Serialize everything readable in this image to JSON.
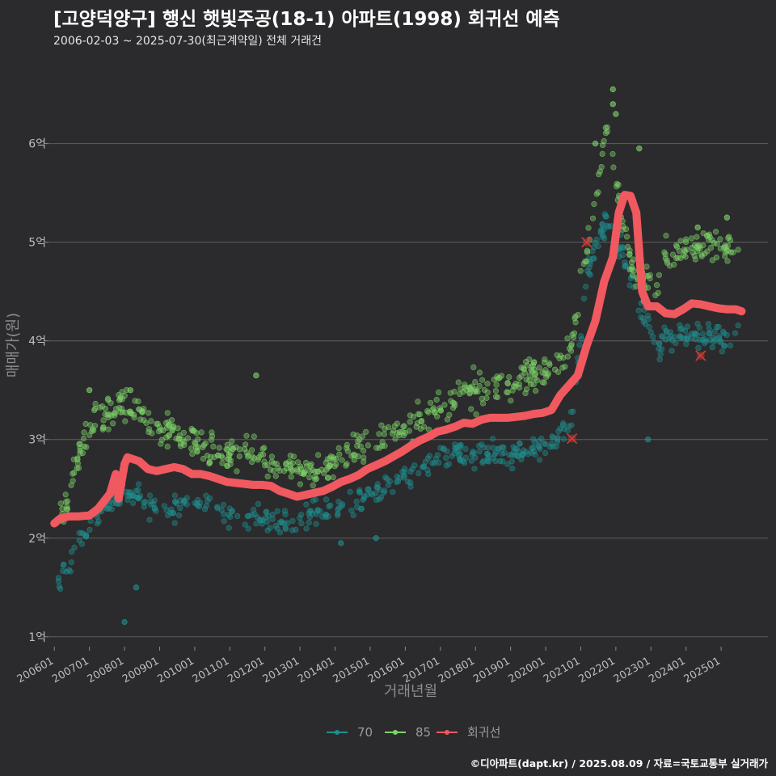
{
  "title": "[고양덕양구] 행신 햇빛주공(18-1) 아파트(1998) 회귀선 예측",
  "subtitle": "2006-02-03 ~ 2025-07-30(최근계약일) 전체 거래건",
  "credit": "©디아파트(dapt.kr) / 2025.08.09 / 자료=국토교통부 실거래가",
  "colors": {
    "background": "#2b2b2d",
    "grid": "#5e5e5e",
    "s70": "#1f8f8f",
    "s85": "#7fd36a",
    "regression": "#f0595f"
  },
  "chart_data": {
    "type": "scatter",
    "xlabel": "거래년월",
    "ylabel": "매매가(원)",
    "ylim": [
      0.9,
      6.8
    ],
    "xlim": [
      "2005-11",
      "2026-05"
    ],
    "grid": true,
    "legend_position": "bottom",
    "y_ticks": [
      {
        "value": 1,
        "label": "1억"
      },
      {
        "value": 2,
        "label": "2억"
      },
      {
        "value": 3,
        "label": "3억"
      },
      {
        "value": 4,
        "label": "4억"
      },
      {
        "value": 5,
        "label": "5억"
      },
      {
        "value": 6,
        "label": "6억"
      }
    ],
    "x_ticks": [
      "200601",
      "200701",
      "200801",
      "200901",
      "201001",
      "201101",
      "201201",
      "201301",
      "201401",
      "201501",
      "201601",
      "201701",
      "201801",
      "201901",
      "202001",
      "202101",
      "202201",
      "202301",
      "202401",
      "202501"
    ],
    "series": [
      {
        "name": "70",
        "kind": "scatter",
        "color": "#1f8f8f",
        "trend": [
          [
            "2006-02",
            1.6
          ],
          [
            "2006-06",
            1.7
          ],
          [
            "2006-10",
            1.95
          ],
          [
            "2007-01",
            2.15
          ],
          [
            "2007-06",
            2.3
          ],
          [
            "2008-01",
            2.45
          ],
          [
            "2008-06",
            2.4
          ],
          [
            "2009-01",
            2.3
          ],
          [
            "2009-06",
            2.3
          ],
          [
            "2010-01",
            2.35
          ],
          [
            "2010-06",
            2.35
          ],
          [
            "2011-01",
            2.2
          ],
          [
            "2011-06",
            2.15
          ],
          [
            "2012-01",
            2.2
          ],
          [
            "2012-06",
            2.15
          ],
          [
            "2013-01",
            2.2
          ],
          [
            "2013-06",
            2.25
          ],
          [
            "2014-01",
            2.3
          ],
          [
            "2014-06",
            2.35
          ],
          [
            "2015-01",
            2.45
          ],
          [
            "2015-06",
            2.55
          ],
          [
            "2016-01",
            2.65
          ],
          [
            "2016-06",
            2.7
          ],
          [
            "2017-01",
            2.8
          ],
          [
            "2017-06",
            2.85
          ],
          [
            "2018-01",
            2.85
          ],
          [
            "2018-06",
            2.85
          ],
          [
            "2019-01",
            2.85
          ],
          [
            "2019-06",
            2.9
          ],
          [
            "2020-01",
            2.95
          ],
          [
            "2020-06",
            3.05
          ],
          [
            "2020-10",
            3.2
          ],
          [
            "2021-03",
            4.6
          ],
          [
            "2021-06",
            5.0
          ],
          [
            "2021-10",
            5.2
          ],
          [
            "2022-03",
            4.9
          ],
          [
            "2022-08",
            4.5
          ],
          [
            "2023-03",
            3.9
          ],
          [
            "2023-06",
            4.05
          ],
          [
            "2024-01",
            4.05
          ],
          [
            "2024-06",
            4.05
          ],
          [
            "2025-01",
            4.0
          ],
          [
            "2025-07",
            4.1
          ]
        ],
        "spread": 0.13
      },
      {
        "name": "85",
        "kind": "scatter",
        "color": "#7fd36a",
        "trend": [
          [
            "2006-03",
            2.2
          ],
          [
            "2006-06",
            2.45
          ],
          [
            "2006-10",
            2.95
          ],
          [
            "2007-01",
            3.15
          ],
          [
            "2007-06",
            3.25
          ],
          [
            "2008-01",
            3.35
          ],
          [
            "2008-06",
            3.3
          ],
          [
            "2009-01",
            3.1
          ],
          [
            "2009-06",
            3.1
          ],
          [
            "2010-01",
            3.0
          ],
          [
            "2010-06",
            2.9
          ],
          [
            "2011-01",
            2.85
          ],
          [
            "2011-06",
            2.9
          ],
          [
            "2012-01",
            2.8
          ],
          [
            "2012-06",
            2.75
          ],
          [
            "2013-01",
            2.65
          ],
          [
            "2013-06",
            2.65
          ],
          [
            "2014-01",
            2.75
          ],
          [
            "2014-06",
            2.85
          ],
          [
            "2015-01",
            2.95
          ],
          [
            "2015-06",
            3.05
          ],
          [
            "2016-01",
            3.1
          ],
          [
            "2016-06",
            3.2
          ],
          [
            "2017-01",
            3.35
          ],
          [
            "2017-06",
            3.45
          ],
          [
            "2018-01",
            3.5
          ],
          [
            "2018-06",
            3.5
          ],
          [
            "2019-01",
            3.55
          ],
          [
            "2019-06",
            3.65
          ],
          [
            "2020-01",
            3.7
          ],
          [
            "2020-06",
            3.75
          ],
          [
            "2020-10",
            4.0
          ],
          [
            "2021-03",
            4.9
          ],
          [
            "2021-06",
            5.5
          ],
          [
            "2021-10",
            6.2
          ],
          [
            "2022-03",
            5.3
          ],
          [
            "2022-08",
            4.6
          ],
          [
            "2023-03",
            4.6
          ],
          [
            "2023-06",
            4.9
          ],
          [
            "2024-01",
            4.9
          ],
          [
            "2024-06",
            5.0
          ],
          [
            "2025-01",
            4.95
          ],
          [
            "2025-07",
            4.85
          ]
        ],
        "spread": 0.16
      },
      {
        "name": "회귀선",
        "kind": "line",
        "color": "#f0595f",
        "points": [
          [
            "2006-01",
            2.15
          ],
          [
            "2006-03",
            2.2
          ],
          [
            "2006-06",
            2.22
          ],
          [
            "2006-09",
            2.22
          ],
          [
            "2007-01",
            2.23
          ],
          [
            "2007-04",
            2.3
          ],
          [
            "2007-08",
            2.45
          ],
          [
            "2007-10",
            2.65
          ],
          [
            "2007-11",
            2.4
          ],
          [
            "2008-01",
            2.75
          ],
          [
            "2008-02",
            2.82
          ],
          [
            "2008-06",
            2.78
          ],
          [
            "2008-09",
            2.7
          ],
          [
            "2008-12",
            2.68
          ],
          [
            "2009-03",
            2.7
          ],
          [
            "2009-06",
            2.72
          ],
          [
            "2009-09",
            2.7
          ],
          [
            "2009-12",
            2.65
          ],
          [
            "2010-03",
            2.65
          ],
          [
            "2010-06",
            2.63
          ],
          [
            "2010-09",
            2.6
          ],
          [
            "2010-12",
            2.57
          ],
          [
            "2011-03",
            2.56
          ],
          [
            "2011-06",
            2.55
          ],
          [
            "2011-09",
            2.54
          ],
          [
            "2011-12",
            2.54
          ],
          [
            "2012-03",
            2.53
          ],
          [
            "2012-06",
            2.48
          ],
          [
            "2012-09",
            2.45
          ],
          [
            "2012-12",
            2.42
          ],
          [
            "2013-03",
            2.44
          ],
          [
            "2013-06",
            2.46
          ],
          [
            "2013-09",
            2.48
          ],
          [
            "2013-12",
            2.52
          ],
          [
            "2014-03",
            2.57
          ],
          [
            "2014-06",
            2.6
          ],
          [
            "2014-09",
            2.64
          ],
          [
            "2014-12",
            2.7
          ],
          [
            "2015-03",
            2.74
          ],
          [
            "2015-06",
            2.78
          ],
          [
            "2015-09",
            2.83
          ],
          [
            "2015-12",
            2.88
          ],
          [
            "2016-03",
            2.94
          ],
          [
            "2016-06",
            2.99
          ],
          [
            "2016-09",
            3.03
          ],
          [
            "2016-12",
            3.08
          ],
          [
            "2017-03",
            3.1
          ],
          [
            "2017-06",
            3.13
          ],
          [
            "2017-09",
            3.17
          ],
          [
            "2017-12",
            3.16
          ],
          [
            "2018-03",
            3.2
          ],
          [
            "2018-06",
            3.22
          ],
          [
            "2018-09",
            3.22
          ],
          [
            "2018-12",
            3.22
          ],
          [
            "2019-03",
            3.23
          ],
          [
            "2019-06",
            3.24
          ],
          [
            "2019-09",
            3.26
          ],
          [
            "2019-12",
            3.27
          ],
          [
            "2020-03",
            3.3
          ],
          [
            "2020-06",
            3.45
          ],
          [
            "2020-09",
            3.55
          ],
          [
            "2020-12",
            3.65
          ],
          [
            "2021-03",
            3.95
          ],
          [
            "2021-06",
            4.2
          ],
          [
            "2021-09",
            4.6
          ],
          [
            "2021-12",
            4.85
          ],
          [
            "2022-02",
            5.3
          ],
          [
            "2022-04",
            5.48
          ],
          [
            "2022-06",
            5.47
          ],
          [
            "2022-08",
            5.3
          ],
          [
            "2022-10",
            4.5
          ],
          [
            "2022-12",
            4.35
          ],
          [
            "2023-03",
            4.35
          ],
          [
            "2023-06",
            4.28
          ],
          [
            "2023-09",
            4.27
          ],
          [
            "2023-12",
            4.32
          ],
          [
            "2024-03",
            4.38
          ],
          [
            "2024-06",
            4.37
          ],
          [
            "2024-09",
            4.35
          ],
          [
            "2024-12",
            4.33
          ],
          [
            "2025-03",
            4.32
          ],
          [
            "2025-06",
            4.32
          ],
          [
            "2025-08",
            4.3
          ]
        ]
      }
    ],
    "predicted_markers": [
      [
        "2020-10",
        3.01
      ],
      [
        "2021-03",
        5.0
      ],
      [
        "2024-06",
        3.85
      ]
    ],
    "outliers": [
      {
        "series": "85",
        "date": "2021-12",
        "value": 6.55
      },
      {
        "series": "85",
        "date": "2021-12",
        "value": 6.4
      },
      {
        "series": "85",
        "date": "2022-01",
        "value": 6.3
      },
      {
        "series": "85",
        "date": "2021-06",
        "value": 6.0
      },
      {
        "series": "85",
        "date": "2022-09",
        "value": 5.95
      },
      {
        "series": "85",
        "date": "2024-05",
        "value": 5.15
      },
      {
        "series": "85",
        "date": "2025-03",
        "value": 5.25
      },
      {
        "series": "85",
        "date": "2011-10",
        "value": 3.65
      },
      {
        "series": "85",
        "date": "2008-03",
        "value": 3.5
      },
      {
        "series": "85",
        "date": "2007-01",
        "value": 3.5
      },
      {
        "series": "70",
        "date": "2008-05",
        "value": 1.5
      },
      {
        "series": "70",
        "date": "2008-01",
        "value": 1.15
      },
      {
        "series": "70",
        "date": "2022-12",
        "value": 3.0
      },
      {
        "series": "70",
        "date": "2014-03",
        "value": 1.95
      },
      {
        "series": "70",
        "date": "2015-03",
        "value": 2.0
      }
    ]
  }
}
